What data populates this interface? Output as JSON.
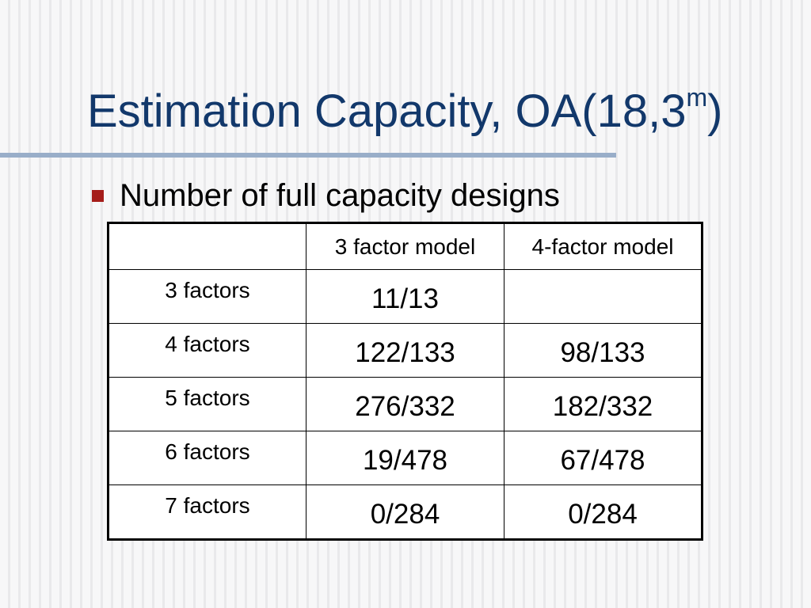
{
  "slide": {
    "title_main": "Estimation Capacity, OA(18,3",
    "title_sup": "m",
    "title_end": ")",
    "bullet": "Number of full capacity designs"
  },
  "table": {
    "headers": [
      "",
      "3 factor model",
      "4-factor model"
    ],
    "rows": [
      {
        "label": "3 factors",
        "values": [
          "11/13",
          ""
        ]
      },
      {
        "label": "4 factors",
        "values": [
          "122/133",
          "98/133"
        ]
      },
      {
        "label": "5 factors",
        "values": [
          "276/332",
          "182/332"
        ]
      },
      {
        "label": "6 factors",
        "values": [
          "19/478",
          "67/478"
        ]
      },
      {
        "label": "7 factors",
        "values": [
          "0/284",
          "0/284"
        ]
      }
    ]
  },
  "colors": {
    "title": "#12386b",
    "bullet": "#a51d1a",
    "rule": "#99aec9"
  }
}
